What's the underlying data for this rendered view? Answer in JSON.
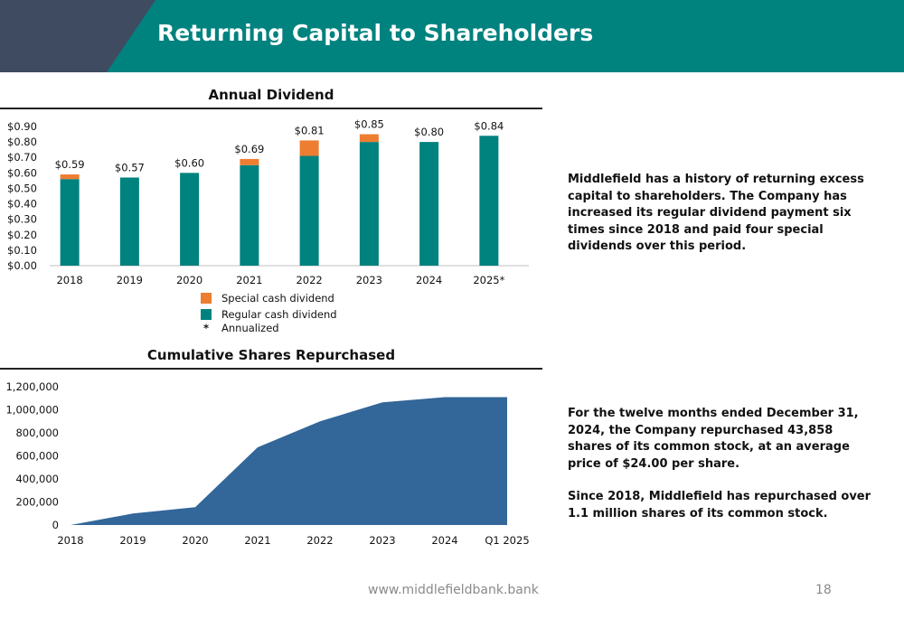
{
  "header": {
    "title": "Returning Capital to Shareholders",
    "bar_color": "#00827f",
    "corner_color": "#3e4b60"
  },
  "chart_data": [
    {
      "type": "bar",
      "title": "Annual Dividend",
      "categories": [
        "2018",
        "2019",
        "2020",
        "2021",
        "2022",
        "2023",
        "2024",
        "2025*"
      ],
      "series": [
        {
          "name": "Regular cash dividend",
          "color": "#00827f",
          "values": [
            0.56,
            0.57,
            0.6,
            0.65,
            0.71,
            0.8,
            0.8,
            0.84
          ]
        },
        {
          "name": "Special cash dividend",
          "color": "#ed7d31",
          "values": [
            0.03,
            0.0,
            0.0,
            0.04,
            0.1,
            0.05,
            0.0,
            0.0
          ]
        }
      ],
      "data_labels": [
        "$0.59",
        "$0.57",
        "$0.60",
        "$0.69",
        "$0.81",
        "$0.85",
        "$0.80",
        "$0.84"
      ],
      "stacked": true,
      "ylim": [
        0,
        0.9
      ],
      "yticks": [
        "$0.00",
        "$0.10",
        "$0.20",
        "$0.30",
        "$0.40",
        "$0.50",
        "$0.60",
        "$0.70",
        "$0.80",
        "$0.90"
      ],
      "legend_position": "bottom",
      "footnote_marker": "*",
      "footnote": "Annualized"
    },
    {
      "type": "area",
      "title": "Cumulative Shares Repurchased",
      "categories": [
        "2018",
        "2019",
        "2020",
        "2021",
        "2022",
        "2023",
        "2024",
        "Q1 2025"
      ],
      "values": [
        0,
        100000,
        155000,
        675000,
        900000,
        1065000,
        1110000,
        1110000
      ],
      "color": "#336699",
      "ylim": [
        0,
        1200000
      ],
      "yticks": [
        "0",
        "200,000",
        "400,000",
        "600,000",
        "800,000",
        "1,000,000",
        "1,200,000"
      ]
    }
  ],
  "text": {
    "paragraph1": "Middlefield has a history of returning excess capital to shareholders.  The Company has increased its regular dividend payment six times since 2018 and paid four special dividends over this period.",
    "paragraph2": "For the twelve months ended December 31, 2024, the Company repurchased 43,858 shares of its common stock, at an average price of $24.00 per share.",
    "paragraph3": "Since 2018, Middlefield has repurchased over 1.1 million shares of its common stock."
  },
  "footer": {
    "url": "www.middlefieldbank.bank",
    "page_number": "18"
  }
}
